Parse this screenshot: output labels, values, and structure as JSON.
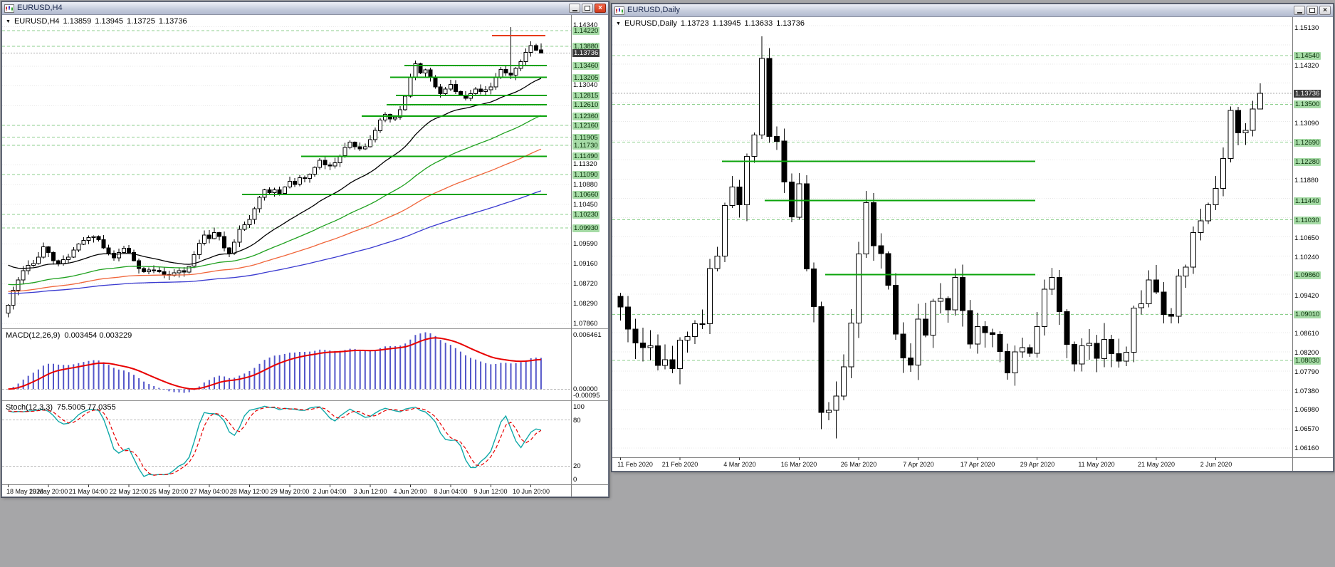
{
  "workspace": {
    "background": "#a6a6a8"
  },
  "windows": {
    "h4": {
      "title": "EURUSD,H4",
      "header": {
        "dropdown_icon": "▼",
        "symbol": "EURUSD,H4",
        "open": "1.13859",
        "high": "1.13945",
        "low": "1.13725",
        "close": "1.13736"
      }
    },
    "daily": {
      "title": "EURUSD,Daily",
      "header": {
        "dropdown_icon": "▼",
        "symbol": "EURUSD,Daily",
        "open": "1.13723",
        "high": "1.13945",
        "low": "1.13633",
        "close": "1.13736"
      }
    }
  },
  "chart_data": [
    {
      "type": "candlestick",
      "symbol": "EURUSD",
      "timeframe": "H4",
      "first_open": 1.0808,
      "wick_scale": 0.0011,
      "closes": [
        1.0825,
        1.0858,
        1.088,
        1.09,
        1.0912,
        1.0916,
        1.093,
        1.0952,
        1.094,
        1.0922,
        1.0915,
        1.0924,
        1.093,
        1.0945,
        1.0958,
        1.0966,
        1.0972,
        1.0975,
        1.0968,
        1.095,
        1.0938,
        1.0928,
        1.094,
        1.0949,
        1.094,
        1.0922,
        1.0905,
        1.0898,
        1.0902,
        1.0901,
        1.0898,
        1.0892,
        1.089,
        1.0896,
        1.09,
        1.0897,
        1.091,
        1.0935,
        1.096,
        1.0978,
        1.097,
        1.0983,
        1.0975,
        1.095,
        1.0938,
        1.0962,
        1.099,
        1.1,
        1.1012,
        1.1035,
        1.106,
        1.1076,
        1.107,
        1.1076,
        1.1068,
        1.1082,
        1.1095,
        1.1088,
        1.1102,
        1.1101,
        1.111,
        1.1125,
        1.114,
        1.113,
        1.1128,
        1.1135,
        1.115,
        1.1168,
        1.118,
        1.117,
        1.1165,
        1.117,
        1.1185,
        1.1205,
        1.1228,
        1.124,
        1.123,
        1.1234,
        1.125,
        1.128,
        1.132,
        1.135,
        1.133,
        1.1337,
        1.132,
        1.13,
        1.1285,
        1.1295,
        1.1305,
        1.129,
        1.1282,
        1.1275,
        1.1285,
        1.1295,
        1.129,
        1.1294,
        1.13,
        1.132,
        1.1338,
        1.133,
        1.1325,
        1.134,
        1.1355,
        1.1375,
        1.139,
        1.138,
        1.13736
      ],
      "wick_overrides": {
        "100": {
          "high": 1.143
        },
        "106": {
          "high": 1.13945,
          "low": 1.13725
        }
      },
      "x_label_step": 8,
      "x_labels": [
        "18 May 2020",
        "19 May 20:00",
        "21 May 04:00",
        "22 May 12:00",
        "25 May 20:00",
        "27 May 04:00",
        "28 May 12:00",
        "29 May 20:00",
        "2 Jun 04:00",
        "3 Jun 12:00",
        "4 Jun 20:00",
        "8 Jun 04:00",
        "9 Jun 12:00",
        "10 Jun 20:00"
      ],
      "y_axis": {
        "max": 1.145,
        "min": 1.0778,
        "grid": {
          "start": 1.0786,
          "step": 0.0043,
          "count": 16
        },
        "plain_labels": [
          "1.14340",
          "1.13040",
          "1.11320",
          "1.10880",
          "1.10450",
          "1.09590",
          "1.09160",
          "1.08720",
          "1.08290",
          "1.07860"
        ],
        "current": "1.13736"
      },
      "levels": {
        "solid": [
          {
            "price": 1.1346,
            "from": 0.707,
            "to": 0.958
          },
          {
            "price": 1.13205,
            "from": 0.682,
            "to": 0.958
          },
          {
            "price": 1.12815,
            "from": 0.692,
            "to": 0.958
          },
          {
            "price": 1.1261,
            "from": 0.676,
            "to": 0.958
          },
          {
            "price": 1.1236,
            "from": 0.632,
            "to": 0.958
          },
          {
            "price": 1.1149,
            "from": 0.526,
            "to": 0.958
          },
          {
            "price": 1.1066,
            "from": 0.422,
            "to": 0.958
          }
        ],
        "dashed": [
          1.1422,
          1.1388,
          1.1216,
          1.11905,
          1.1173,
          1.1109,
          1.1023,
          1.0993
        ],
        "red": [
          {
            "price": 1.1411,
            "from": 0.861,
            "to": 0.955
          }
        ]
      },
      "moving_averages": [
        {
          "name": "ma-fast-black",
          "period": 24,
          "color": "#000000",
          "seed": 1.092
        },
        {
          "name": "ma-medium-green",
          "period": 55,
          "color": "#1fa11f",
          "seed": 1.0872
        },
        {
          "name": "ma-slow-red",
          "period": 90,
          "color": "#f0653a",
          "seed": 1.0856
        },
        {
          "name": "ma-slowest-blue",
          "period": 160,
          "color": "#3a3ad0",
          "seed": 1.0851
        }
      ],
      "indicators": [
        {
          "name": "MACD",
          "label": "MACD(12,26,9)",
          "values": "0.003454 0.003229",
          "axis_max": "0.006461",
          "axis_zero": "0.00000",
          "axis_min": "-0.00095",
          "histogram_color": "#5356c9",
          "signal_color": "#e80000"
        },
        {
          "name": "Stochastic",
          "label": "Stoch(12,3,3)",
          "values": "75.5005 77.0355",
          "axis_labels": [
            "100",
            "80",
            "20",
            "0"
          ],
          "levels": [
            80,
            20
          ],
          "main_color": "#0fa8a8",
          "signal_color": "#e80000"
        }
      ]
    },
    {
      "type": "candlestick",
      "symbol": "EURUSD",
      "timeframe": "Daily",
      "first_open": 1.094,
      "wick_scale": 0.0035,
      "closes": [
        1.0917,
        1.087,
        1.084,
        1.083,
        1.0834,
        1.0792,
        1.0804,
        1.0785,
        1.0846,
        1.0854,
        1.0881,
        1.0881,
        1.0999,
        1.1026,
        1.1134,
        1.1173,
        1.1135,
        1.1239,
        1.1284,
        1.1448,
        1.1281,
        1.1271,
        1.1184,
        1.1109,
        1.118,
        1.0998,
        1.0918,
        1.0692,
        1.0696,
        1.0727,
        1.0789,
        1.0883,
        1.103,
        1.114,
        1.1048,
        1.1031,
        1.0963,
        1.0859,
        1.0808,
        1.0793,
        1.0891,
        1.0857,
        1.0929,
        1.0935,
        1.0911,
        1.098,
        1.0909,
        1.0838,
        1.0875,
        1.0862,
        1.0858,
        1.0822,
        1.0776,
        1.0821,
        1.083,
        1.0818,
        1.0875,
        1.0955,
        1.098,
        1.0907,
        1.0837,
        1.0795,
        1.0834,
        1.0839,
        1.0807,
        1.0848,
        1.0817,
        1.0801,
        1.082,
        1.0915,
        1.0924,
        1.0975,
        1.0949,
        1.0901,
        1.0897,
        1.0983,
        1.1002,
        1.1076,
        1.1101,
        1.1135,
        1.117,
        1.1234,
        1.1337,
        1.1289,
        1.1294,
        1.134,
        1.13736
      ],
      "wick_overrides": {
        "19": {
          "high": 1.1495
        },
        "27": {
          "low": 1.0656
        },
        "29": {
          "low": 1.0636
        },
        "86": {
          "high": 1.13945,
          "low": 1.13633
        }
      },
      "x_label_step": 8,
      "x_labels": [
        "11 Feb 2020",
        "21 Feb 2020",
        "4 Mar 2020",
        "16 Mar 2020",
        "26 Mar 2020",
        "7 Apr 2020",
        "17 Apr 2020",
        "29 Apr 2020",
        "11 May 2020",
        "21 May 2020",
        "2 Jun 2020"
      ],
      "y_axis": {
        "max": 1.153,
        "min": 1.0602,
        "grid": {
          "start": 1.0616,
          "step": 0.0041,
          "count": 23
        },
        "plain_labels": [
          "1.15130",
          "1.14320",
          "1.13090",
          "1.11880",
          "1.10650",
          "1.10240",
          "1.09420",
          "1.08610",
          "1.08200",
          "1.07790",
          "1.07380",
          "1.06980",
          "1.06570",
          "1.06160"
        ],
        "current": "1.13736"
      },
      "levels": {
        "solid": [
          {
            "price": 1.1228,
            "from": 0.161,
            "to": 0.622
          },
          {
            "price": 1.1144,
            "from": 0.224,
            "to": 0.622
          },
          {
            "price": 1.0986,
            "from": 0.313,
            "to": 0.622
          }
        ],
        "dashed": [
          1.1454,
          1.135,
          1.1269,
          1.1103,
          1.0901,
          1.0803
        ],
        "red": []
      },
      "moving_averages": [],
      "indicators": []
    }
  ]
}
